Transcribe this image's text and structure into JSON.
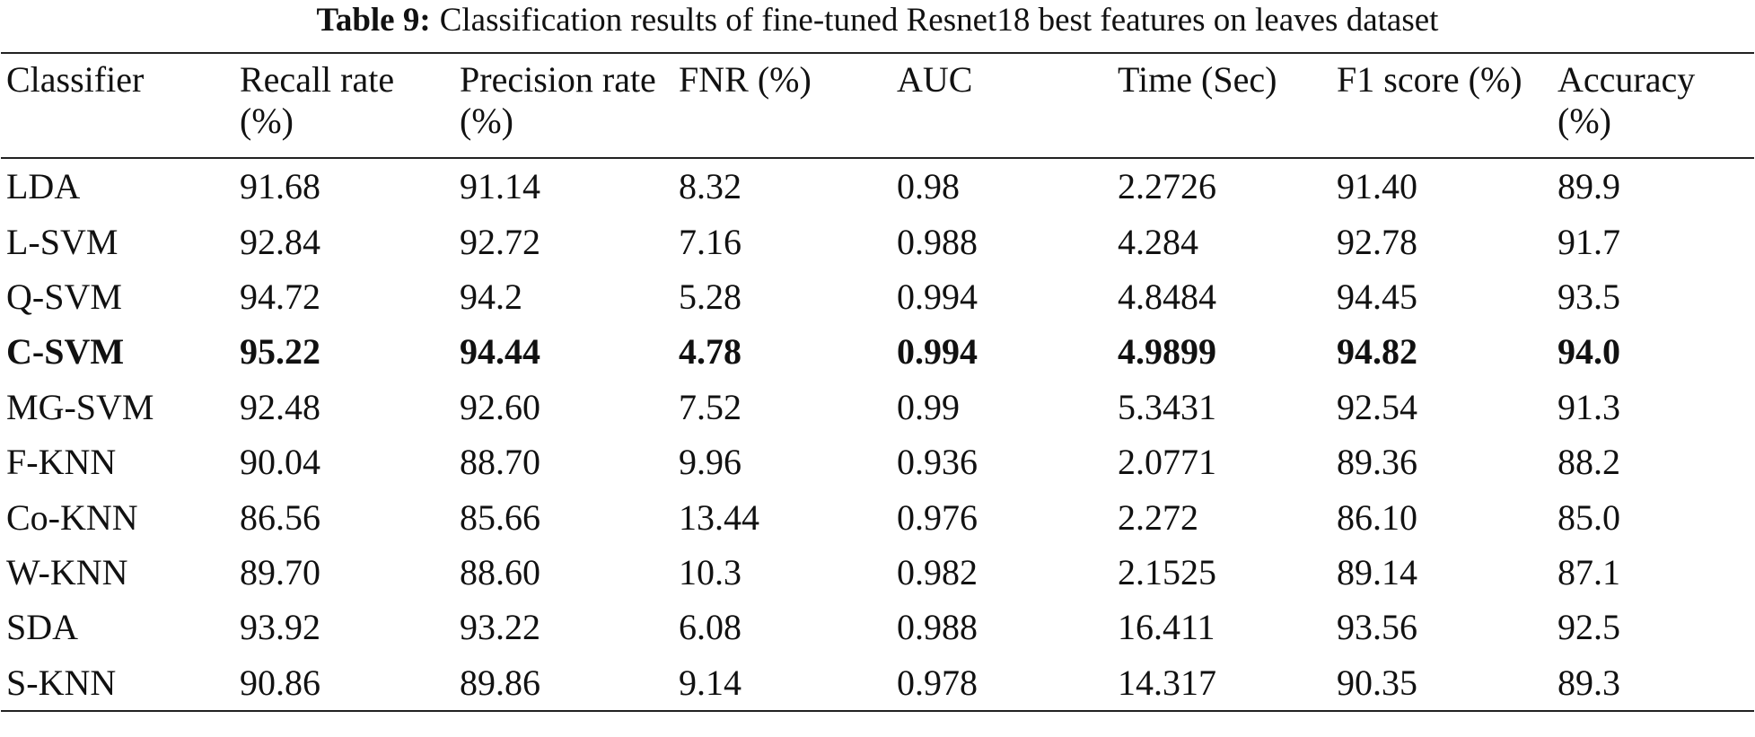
{
  "table": {
    "label": "Table 9:",
    "caption": "Classification results of fine-tuned Resnet18 best features on leaves dataset",
    "header": [
      "Classifier",
      "Recall rate (%)",
      "Precision rate (%)",
      "FNR (%)",
      "AUC",
      "Time (Sec)",
      "F1 score (%)",
      "Accuracy (%)"
    ],
    "bold_row": 3,
    "rows": [
      [
        "LDA",
        "91.68",
        "91.14",
        "8.32",
        "0.98",
        "2.2726",
        "91.40",
        "89.9"
      ],
      [
        "L-SVM",
        "92.84",
        "92.72",
        "7.16",
        "0.988",
        "4.284",
        "92.78",
        "91.7"
      ],
      [
        "Q-SVM",
        "94.72",
        "94.2",
        "5.28",
        "0.994",
        "4.8484",
        "94.45",
        "93.5"
      ],
      [
        "C-SVM",
        "95.22",
        "94.44",
        "4.78",
        "0.994",
        "4.9899",
        "94.82",
        "94.0"
      ],
      [
        "MG-SVM",
        "92.48",
        "92.60",
        "7.52",
        "0.99",
        "5.3431",
        "92.54",
        "91.3"
      ],
      [
        "F-KNN",
        "90.04",
        "88.70",
        "9.96",
        "0.936",
        "2.0771",
        "89.36",
        "88.2"
      ],
      [
        "Co-KNN",
        "86.56",
        "85.66",
        "13.44",
        "0.976",
        "2.272",
        "86.10",
        "85.0"
      ],
      [
        "W-KNN",
        "89.70",
        "88.60",
        "10.3",
        "0.982",
        "2.1525",
        "89.14",
        "87.1"
      ],
      [
        "SDA",
        "93.92",
        "93.22",
        "6.08",
        "0.988",
        "16.411",
        "93.56",
        "92.5"
      ],
      [
        "S-KNN",
        "90.86",
        "89.86",
        "9.14",
        "0.978",
        "14.317",
        "90.35",
        "89.3"
      ]
    ]
  }
}
